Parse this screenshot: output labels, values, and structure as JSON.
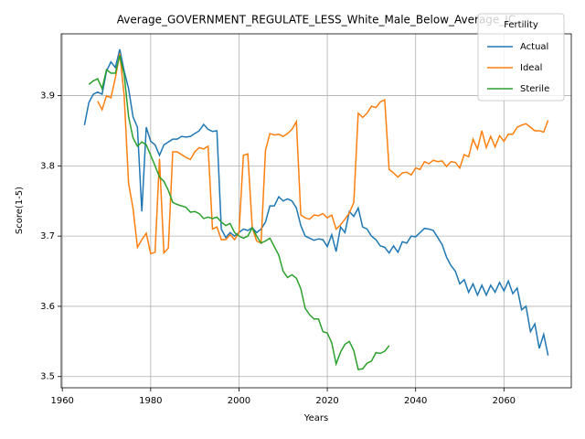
{
  "chart_data": {
    "type": "line",
    "title": "Average_GOVERNMENT_REGULATE_LESS_White_Male_Below_Average_IC",
    "xlabel": "Years",
    "ylabel": "Score(1-5)",
    "legend_title": "Fertility",
    "legend": "upper right",
    "grid": true,
    "xlim": [
      1959.75,
      2075.25
    ],
    "xticks": [
      1960,
      1980,
      2000,
      2020,
      2040,
      2060
    ],
    "ylim": [
      3.484,
      3.988
    ],
    "yticks": [
      3.5,
      3.6,
      3.7,
      3.8,
      3.9
    ],
    "x": [
      1965,
      1966,
      1967,
      1968,
      1969,
      1970,
      1971,
      1972,
      1973,
      1974,
      1975,
      1976,
      1977,
      1978,
      1979,
      1980,
      1981,
      1982,
      1983,
      1984,
      1985,
      1986,
      1987,
      1988,
      1989,
      1990,
      1991,
      1992,
      1993,
      1994,
      1995,
      1996,
      1997,
      1998,
      1999,
      2000,
      2001,
      2002,
      2003,
      2004,
      2005,
      2006,
      2007,
      2008,
      2009,
      2010,
      2011,
      2012,
      2013,
      2014,
      2015,
      2016,
      2017,
      2018,
      2019,
      2020,
      2021,
      2022,
      2023,
      2024,
      2025,
      2026,
      2027,
      2028,
      2029,
      2030,
      2031,
      2032,
      2033,
      2034,
      2035,
      2036,
      2037,
      2038,
      2039,
      2040,
      2041,
      2042,
      2043,
      2044,
      2045,
      2046,
      2047,
      2048,
      2049,
      2050,
      2051,
      2052,
      2053,
      2054,
      2055,
      2056,
      2057,
      2058,
      2059,
      2060,
      2061,
      2062,
      2063,
      2064,
      2065,
      2066,
      2067,
      2068,
      2069,
      2070
    ],
    "series": [
      {
        "name": "Actual",
        "color": "#1f77b4",
        "values": [
          3.858,
          3.89,
          3.902,
          3.905,
          3.902,
          3.935,
          3.948,
          3.94,
          3.966,
          3.935,
          3.91,
          3.87,
          3.855,
          3.735,
          3.855,
          3.835,
          3.83,
          3.815,
          3.83,
          3.834,
          3.838,
          3.838,
          3.842,
          3.841,
          3.842,
          3.846,
          3.85,
          3.859,
          3.852,
          3.849,
          3.85,
          3.71,
          3.698,
          3.705,
          3.7,
          3.705,
          3.71,
          3.708,
          3.712,
          3.705,
          3.71,
          3.72,
          3.743,
          3.743,
          3.756,
          3.75,
          3.753,
          3.75,
          3.74,
          3.715,
          3.7,
          3.697,
          3.694,
          3.696,
          3.695,
          3.685,
          3.702,
          3.678,
          3.713,
          3.705,
          3.735,
          3.728,
          3.74,
          3.713,
          3.71,
          3.7,
          3.695,
          3.686,
          3.684,
          3.676,
          3.686,
          3.677,
          3.692,
          3.69,
          3.7,
          3.699,
          3.705,
          3.711,
          3.71,
          3.708,
          3.698,
          3.688,
          3.67,
          3.658,
          3.65,
          3.632,
          3.638,
          3.62,
          3.632,
          3.616,
          3.63,
          3.616,
          3.63,
          3.62,
          3.634,
          3.622,
          3.636,
          3.618,
          3.626,
          3.595,
          3.6,
          3.564,
          3.575,
          3.54,
          3.56,
          3.53
        ]
      },
      {
        "name": "Ideal",
        "color": "#ff7f0e",
        "values": [
          null,
          null,
          null,
          3.892,
          3.88,
          3.9,
          3.897,
          3.925,
          3.96,
          3.9,
          3.775,
          3.74,
          3.684,
          3.695,
          3.704,
          3.675,
          3.677,
          3.81,
          3.676,
          3.683,
          3.82,
          3.82,
          3.816,
          3.812,
          3.809,
          3.82,
          3.826,
          3.824,
          3.828,
          3.71,
          3.713,
          3.695,
          3.695,
          3.702,
          3.695,
          3.705,
          3.815,
          3.817,
          3.712,
          3.693,
          3.69,
          3.822,
          3.846,
          3.844,
          3.845,
          3.842,
          3.846,
          3.852,
          3.863,
          3.73,
          3.726,
          3.724,
          3.73,
          3.729,
          3.732,
          3.726,
          3.73,
          3.71,
          3.716,
          3.724,
          3.733,
          3.748,
          3.875,
          3.869,
          3.875,
          3.885,
          3.883,
          3.891,
          3.894,
          3.795,
          3.79,
          3.784,
          3.79,
          3.791,
          3.787,
          3.797,
          3.795,
          3.806,
          3.803,
          3.808,
          3.806,
          3.807,
          3.799,
          3.806,
          3.805,
          3.797,
          3.816,
          3.813,
          3.838,
          3.824,
          3.85,
          3.826,
          3.842,
          3.827,
          3.843,
          3.835,
          3.845,
          3.845,
          3.855,
          3.858,
          3.86,
          3.855,
          3.85,
          3.85,
          3.848,
          3.865
        ]
      },
      {
        "name": "Sterile",
        "color": "#2ca02c",
        "values": [
          null,
          3.916,
          3.921,
          3.924,
          3.91,
          3.937,
          3.932,
          3.932,
          3.957,
          3.93,
          3.87,
          3.84,
          3.828,
          3.834,
          3.83,
          3.815,
          3.8,
          3.784,
          3.778,
          3.765,
          3.748,
          3.745,
          3.743,
          3.741,
          3.734,
          3.735,
          3.732,
          3.725,
          3.727,
          3.725,
          3.727,
          3.72,
          3.715,
          3.718,
          3.705,
          3.7,
          3.697,
          3.7,
          3.712,
          3.7,
          3.69,
          3.693,
          3.697,
          3.685,
          3.673,
          3.65,
          3.641,
          3.645,
          3.64,
          3.625,
          3.597,
          3.588,
          3.582,
          3.582,
          3.564,
          3.562,
          3.548,
          3.518,
          3.535,
          3.546,
          3.55,
          3.537,
          3.51,
          3.511,
          3.519,
          3.522,
          3.534,
          3.533,
          3.536,
          3.544,
          null,
          null,
          null,
          null,
          null,
          null,
          null,
          null,
          null,
          null,
          null,
          null,
          null,
          null,
          null,
          null,
          null,
          null,
          null,
          null,
          null,
          null,
          null,
          null,
          null,
          null,
          null,
          null,
          null,
          null,
          null,
          null,
          null,
          null,
          null,
          null
        ]
      }
    ]
  }
}
